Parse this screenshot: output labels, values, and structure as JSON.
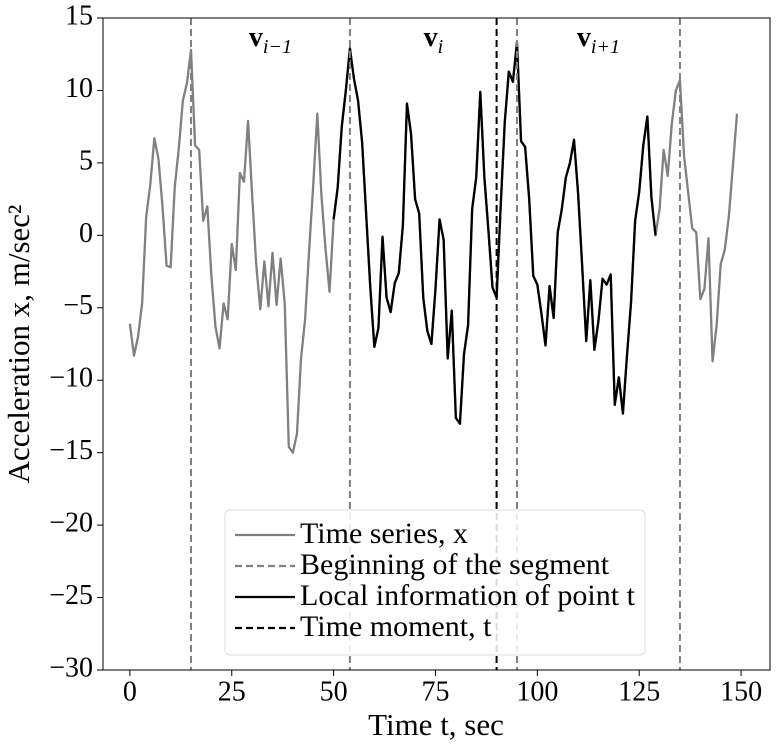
{
  "chart_data": {
    "type": "line",
    "xlabel": "Time t, sec",
    "ylabel": "Acceleration x, m/sec²",
    "xlim": [
      -6.6,
      157.1
    ],
    "ylim": [
      -30,
      15
    ],
    "xticks": [
      0,
      25,
      50,
      75,
      100,
      125,
      150
    ],
    "yticks": [
      {
        "value": -30,
        "label": "−30"
      },
      {
        "value": -25,
        "label": "−25"
      },
      {
        "value": -20,
        "label": "−20"
      },
      {
        "value": -15,
        "label": "−15"
      },
      {
        "value": -10,
        "label": "−10"
      },
      {
        "value": -5,
        "label": "−5"
      },
      0,
      5,
      10,
      15
    ],
    "x": [
      0,
      1,
      2,
      3,
      4,
      5,
      6,
      7,
      8,
      9,
      10,
      11,
      12,
      13,
      14,
      15,
      16,
      17,
      18,
      19,
      20,
      21,
      22,
      23,
      24,
      25,
      26,
      27,
      28,
      29,
      30,
      31,
      32,
      33,
      34,
      35,
      36,
      37,
      38,
      39,
      40,
      41,
      42,
      43,
      44,
      45,
      46,
      47,
      48,
      49,
      50,
      51,
      52,
      53,
      54,
      55,
      56,
      57,
      58,
      59,
      60,
      61,
      62,
      63,
      64,
      65,
      66,
      67,
      68,
      69,
      70,
      71,
      72,
      73,
      74,
      75,
      76,
      77,
      78,
      79,
      80,
      81,
      82,
      83,
      84,
      85,
      86,
      87,
      88,
      89,
      90,
      91,
      92,
      93,
      94,
      95,
      96,
      97,
      98,
      99,
      100,
      101,
      102,
      103,
      104,
      105,
      106,
      107,
      108,
      109,
      110,
      111,
      112,
      113,
      114,
      115,
      116,
      117,
      118,
      119,
      120,
      121,
      122,
      123,
      124,
      125,
      126,
      127,
      128,
      129,
      130,
      131,
      132,
      133,
      134,
      135,
      136,
      137,
      138,
      139,
      140,
      141,
      142,
      143,
      144,
      145,
      146,
      147,
      148,
      149
    ],
    "series": [
      {
        "name": "Time series, x",
        "color": "#808080",
        "values": [
          -6.1,
          -8.3,
          -7.0,
          -4.7,
          1.3,
          3.5,
          6.7,
          5.3,
          2.0,
          -2.1,
          -2.2,
          3.3,
          6.0,
          9.3,
          10.5,
          12.8,
          6.2,
          5.9,
          1.0,
          2.0,
          -2.8,
          -6.3,
          -7.8,
          -4.7,
          -5.8,
          -0.6,
          -2.4,
          4.3,
          3.7,
          7.9,
          2.8,
          -2.0,
          -5.1,
          -1.8,
          -4.9,
          -1.2,
          -4.8,
          -1.6,
          -4.7,
          -14.6,
          -15.0,
          -13.7,
          -8.5,
          -5.8,
          -1.0,
          3.5,
          8.4,
          2.8,
          -0.9,
          -3.9,
          1.1,
          3.3,
          7.5,
          10.0,
          12.9,
          10.8,
          9.3,
          6.4,
          1.4,
          -3.6,
          -7.7,
          -6.4,
          -0.1,
          -4.3,
          -5.3,
          -3.3,
          -2.6,
          0.7,
          9.1,
          7.0,
          2.5,
          1.5,
          -4.3,
          -6.6,
          -7.5,
          -3.7,
          1.1,
          -0.3,
          -8.5,
          -5.2,
          -12.6,
          -13.0,
          -8.2,
          -6.2,
          1.8,
          4.0,
          9.9,
          4.0,
          0.3,
          -3.6,
          -4.3,
          2.0,
          7.8,
          11.3,
          10.6,
          13.3,
          6.5,
          6.1,
          2.5,
          -2.8,
          -3.4,
          -5.4,
          -7.6,
          -3.5,
          -5.7,
          0.2,
          1.8,
          4.0,
          5.0,
          6.6,
          2.9,
          -2.1,
          -7.3,
          -3.1,
          -7.9,
          -5.9,
          -3.0,
          -3.4,
          -2.7,
          -11.7,
          -9.8,
          -12.3,
          -8.3,
          -4.6,
          1.0,
          3.0,
          6.2,
          8.2,
          2.6,
          0.0,
          1.8,
          5.9,
          4.1,
          7.7,
          10.0,
          10.7,
          5.5,
          3.0,
          0.5,
          0.2,
          -4.4,
          -3.7,
          -0.2,
          -8.7,
          -6.2,
          -2.0,
          -1.0,
          1.3,
          4.8,
          8.4
        ]
      },
      {
        "name": "Local information of point t",
        "color": "#000000",
        "values": [
          null,
          null,
          null,
          null,
          null,
          null,
          null,
          null,
          null,
          null,
          null,
          null,
          null,
          null,
          null,
          null,
          null,
          null,
          null,
          null,
          null,
          null,
          null,
          null,
          null,
          null,
          null,
          null,
          null,
          null,
          null,
          null,
          null,
          null,
          null,
          null,
          null,
          null,
          null,
          null,
          null,
          null,
          null,
          null,
          null,
          null,
          null,
          null,
          null,
          null,
          1.1,
          3.3,
          7.5,
          10.0,
          12.9,
          10.8,
          9.3,
          6.4,
          1.4,
          -3.6,
          -7.7,
          -6.4,
          -0.1,
          -4.3,
          -5.3,
          -3.3,
          -2.6,
          0.7,
          9.1,
          7.0,
          2.5,
          1.5,
          -4.3,
          -6.6,
          -7.5,
          -3.7,
          1.1,
          -0.3,
          -8.5,
          -5.2,
          -12.6,
          -13.0,
          -8.2,
          -6.2,
          1.8,
          4.0,
          9.9,
          4.0,
          0.3,
          -3.6,
          -4.3,
          2.0,
          7.8,
          11.3,
          10.6,
          13.3,
          6.5,
          6.1,
          2.5,
          -2.8,
          -3.4,
          -5.4,
          -7.6,
          -3.5,
          -5.7,
          0.2,
          1.8,
          4.0,
          5.0,
          6.6,
          2.9,
          -2.1,
          -7.3,
          -3.1,
          -7.9,
          -5.9,
          -3.0,
          -3.4,
          -2.7,
          -11.7,
          -9.8,
          -12.3,
          -8.3,
          -4.6,
          1.0,
          3.0,
          6.2,
          8.2,
          2.6,
          0.0,
          null,
          null,
          null,
          null,
          null,
          null,
          null,
          null,
          null,
          null,
          null,
          null,
          null,
          null,
          null,
          null,
          null,
          null,
          null,
          null
        ]
      }
    ],
    "vlines": [
      {
        "name": "Beginning of the segment",
        "color": "#808080",
        "x": [
          15,
          54,
          95,
          135
        ]
      },
      {
        "name": "Time moment, t",
        "color": "#000000",
        "x": [
          90
        ]
      }
    ],
    "annotations": [
      {
        "label": "v",
        "subscript": "i−1"
      },
      {
        "label": "v",
        "subscript": "i"
      },
      {
        "label": "v",
        "subscript": "i+1"
      }
    ]
  }
}
